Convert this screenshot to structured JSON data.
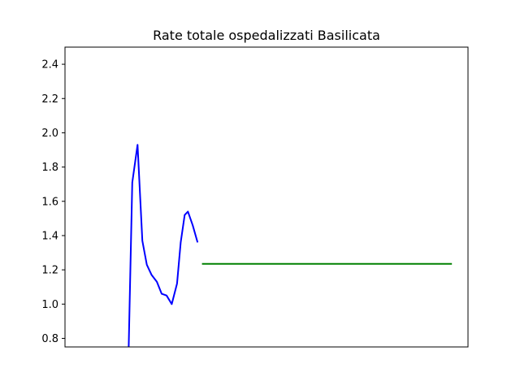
{
  "chart_data": {
    "type": "line",
    "title": "Rate totale ospedalizzati Basilicata",
    "xlabel": "",
    "ylabel": "",
    "xlim": [
      0,
      100
    ],
    "ylim": [
      0.75,
      2.5
    ],
    "grid": false,
    "y_ticks": [
      "0.8",
      "1.0",
      "1.2",
      "1.4",
      "1.6",
      "1.8",
      "2.0",
      "2.2",
      "2.4"
    ],
    "series": [
      {
        "color": "#0000ff",
        "x": [
          15.8,
          16.7,
          18.0,
          19.2,
          20.3,
          21.5,
          22.8,
          24.0,
          25.2,
          26.5,
          27.8,
          28.7,
          29.7,
          30.5,
          31.7,
          32.9
        ],
        "y": [
          0.75,
          1.71,
          1.93,
          1.37,
          1.23,
          1.17,
          1.13,
          1.06,
          1.05,
          1.0,
          1.12,
          1.36,
          1.52,
          1.54,
          1.46,
          1.36
        ]
      },
      {
        "color": "#008000",
        "x": [
          34.0,
          96.0
        ],
        "y": [
          1.235,
          1.235
        ]
      }
    ]
  }
}
